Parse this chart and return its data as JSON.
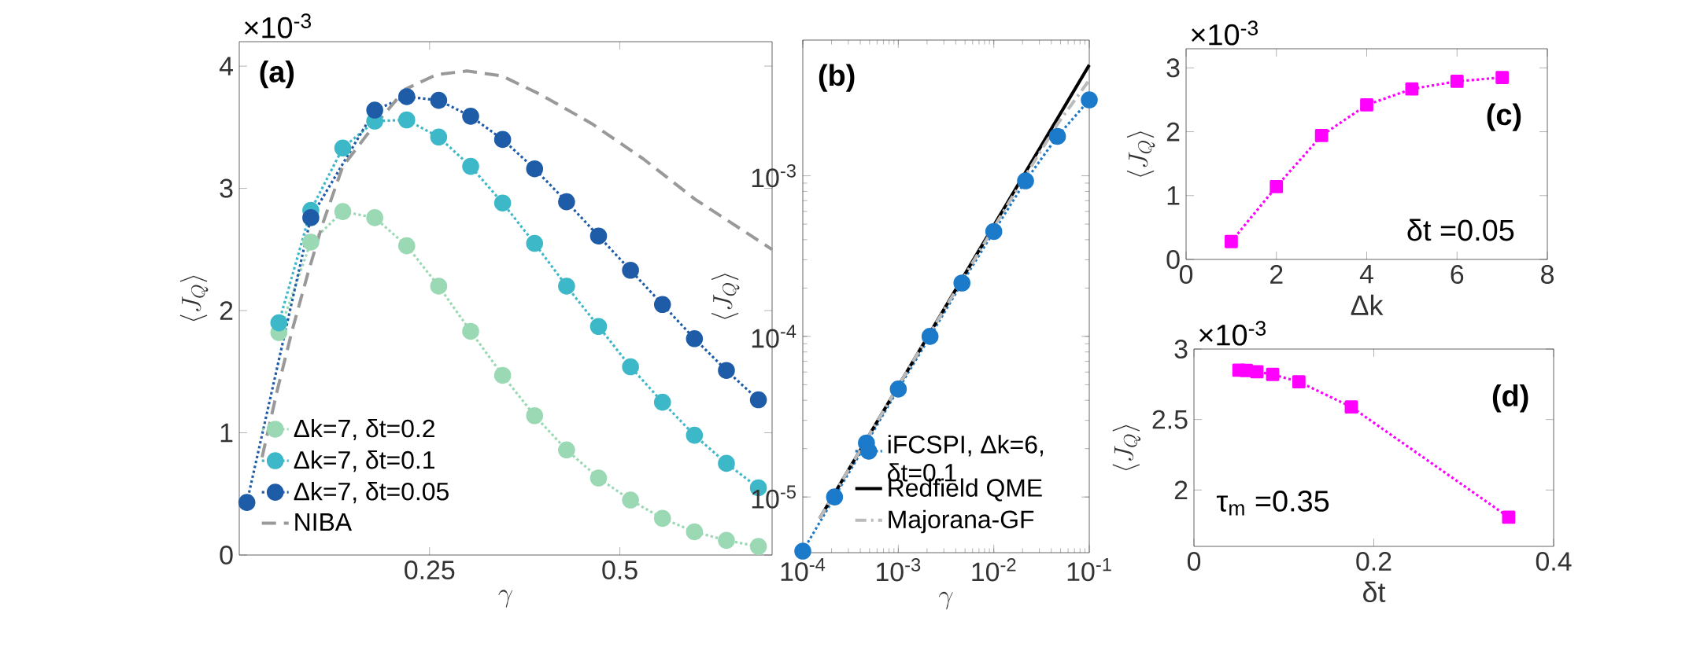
{
  "chart_data": [
    {
      "type": "line",
      "xlabel": "\\gamma",
      "ylabel": "\\langle J_Q \\rangle",
      "annotations": [
        "(a)",
        "×10$^{-3}$"
      ],
      "x": [
        0.01,
        0.052,
        0.094,
        0.136,
        0.178,
        0.22,
        0.262,
        0.304,
        0.346,
        0.388,
        0.43,
        0.472,
        0.514,
        0.556,
        0.598,
        0.64,
        0.682
      ],
      "series": [
        {
          "name": "Δk=7,   δt=0.2",
          "color": "#9ad9b4",
          "marker": "circle",
          "line_style": "dotted",
          "values": [
            null,
            1.82,
            2.56,
            2.81,
            2.76,
            2.53,
            2.2,
            1.83,
            1.47,
            1.14,
            0.86,
            0.63,
            0.45,
            0.3,
            0.19,
            0.12,
            0.07
          ]
        },
        {
          "name": "Δk=7,   δt=0.1",
          "color": "#3db8c8",
          "marker": "circle",
          "line_style": "dotted",
          "values": [
            null,
            1.9,
            2.82,
            3.33,
            3.55,
            3.56,
            3.42,
            3.18,
            2.88,
            2.55,
            2.2,
            1.87,
            1.54,
            1.25,
            0.98,
            0.75,
            0.55
          ]
        },
        {
          "name": "Δk=7,   δt=0.05",
          "color": "#1f5ca8",
          "marker": "circle",
          "line_style": "dotted",
          "values": [
            0.43,
            null,
            2.76,
            null,
            3.64,
            3.75,
            3.72,
            3.59,
            3.4,
            3.16,
            2.89,
            2.61,
            2.33,
            2.05,
            1.77,
            1.51,
            1.27
          ]
        },
        {
          "name": "NIBA",
          "color": "#999999",
          "marker": "none",
          "line_style": "dashed",
          "x": [
            0.03,
            0.05,
            0.07,
            0.09,
            0.109,
            0.136,
            0.168,
            0.218,
            0.259,
            0.299,
            0.345,
            0.395,
            0.463,
            0.531,
            0.599,
            0.7
          ],
          "values": [
            0.8,
            1.35,
            1.85,
            2.3,
            2.7,
            3.18,
            3.44,
            3.81,
            3.93,
            3.96,
            3.92,
            3.77,
            3.53,
            3.24,
            2.91,
            2.5
          ]
        }
      ],
      "xlim": [
        0,
        0.7
      ],
      "xticks": [
        0.25,
        0.5
      ],
      "ylim": [
        0,
        4.2
      ],
      "yticks": [
        0,
        1,
        2,
        3,
        4
      ],
      "legend": "bottom left"
    },
    {
      "type": "line",
      "xlabel": "\\gamma",
      "ylabel": "\\langle J_Q \\rangle",
      "annotations": [
        "(b)"
      ],
      "log": "xy",
      "series": [
        {
          "name": "iFCSPI, Δk=6,   δt=0.1",
          "color": "#1b7ac9",
          "marker": "circle",
          "line_style": "dotted",
          "x": [
            0.0001,
            0.000215,
            0.000464,
            0.001,
            0.00215,
            0.00464,
            0.01,
            0.0215,
            0.0464,
            0.1
          ],
          "values": [
            4.6e-06,
            1e-05,
            2.17e-05,
            4.7e-05,
            0.0001,
            0.000215,
            0.00045,
            0.00093,
            0.00176,
            0.00297
          ]
        },
        {
          "name": "Redfield QME",
          "color": "#000000",
          "marker": "none",
          "line_style": "solid",
          "x": [
            0.00015,
            0.1
          ],
          "values": [
            7.35e-06,
            0.0049
          ]
        },
        {
          "name": "Majorana-GF",
          "color": "#bbbbbb",
          "marker": "none",
          "line_style": "dashdot",
          "x": [
            0.00015,
            0.0015,
            0.015,
            0.0464,
            0.1
          ],
          "values": [
            7.35e-06,
            7.35e-05,
            0.00071,
            0.0021,
            0.00395
          ]
        }
      ],
      "xlim": [
        0.0001,
        0.1
      ],
      "xticks": [
        {
          "value": 0.0001,
          "label": "10$^{-4}$"
        },
        {
          "value": 0.001,
          "label": "10$^{-3}$"
        },
        {
          "value": 0.01,
          "label": "10$^{-2}$"
        },
        {
          "value": 0.1,
          "label": "10$^{-1}$"
        }
      ],
      "ylim": [
        4.5e-06,
        0.007
      ],
      "yticks": [
        {
          "value": 1e-05,
          "label": "10$^{-5}$"
        },
        {
          "value": 0.0001,
          "label": "10$^{-4}$"
        },
        {
          "value": 0.001,
          "label": "10$^{-3}$"
        }
      ],
      "legend": "bottom right"
    },
    {
      "type": "line",
      "xlabel": "Δk",
      "ylabel": "\\langle J_Q \\rangle",
      "annotations": [
        "(c)",
        "δt =0.05",
        "×10$^{-3}$"
      ],
      "color": "#ff00ff",
      "marker": "square",
      "line_style": "dotted",
      "x": [
        1,
        2,
        3,
        4,
        5,
        6,
        7
      ],
      "values": [
        0.28,
        1.14,
        1.94,
        2.42,
        2.67,
        2.79,
        2.85
      ],
      "xlim": [
        0,
        8
      ],
      "xticks": [
        0,
        2,
        4,
        6,
        8
      ],
      "ylim": [
        0,
        3.3
      ],
      "yticks": [
        0,
        1,
        2,
        3
      ]
    },
    {
      "type": "line",
      "xlabel": "δt",
      "ylabel": "\\langle J_Q \\rangle",
      "annotations": [
        "(d)",
        "τ$_{m}$ =0.35",
        "×10$^{-3}$"
      ],
      "color": "#ff00ff",
      "marker": "square",
      "line_style": "dotted",
      "x": [
        0.05,
        0.0583,
        0.07,
        0.0875,
        0.1167,
        0.175,
        0.35
      ],
      "values": [
        2.85,
        2.848,
        2.839,
        2.82,
        2.768,
        2.589,
        1.807
      ],
      "xlim": [
        0,
        0.4
      ],
      "xticks": [
        0,
        0.2,
        0.4
      ],
      "ylim": [
        1.6,
        3
      ],
      "yticks": [
        2,
        2.5,
        3
      ]
    }
  ]
}
